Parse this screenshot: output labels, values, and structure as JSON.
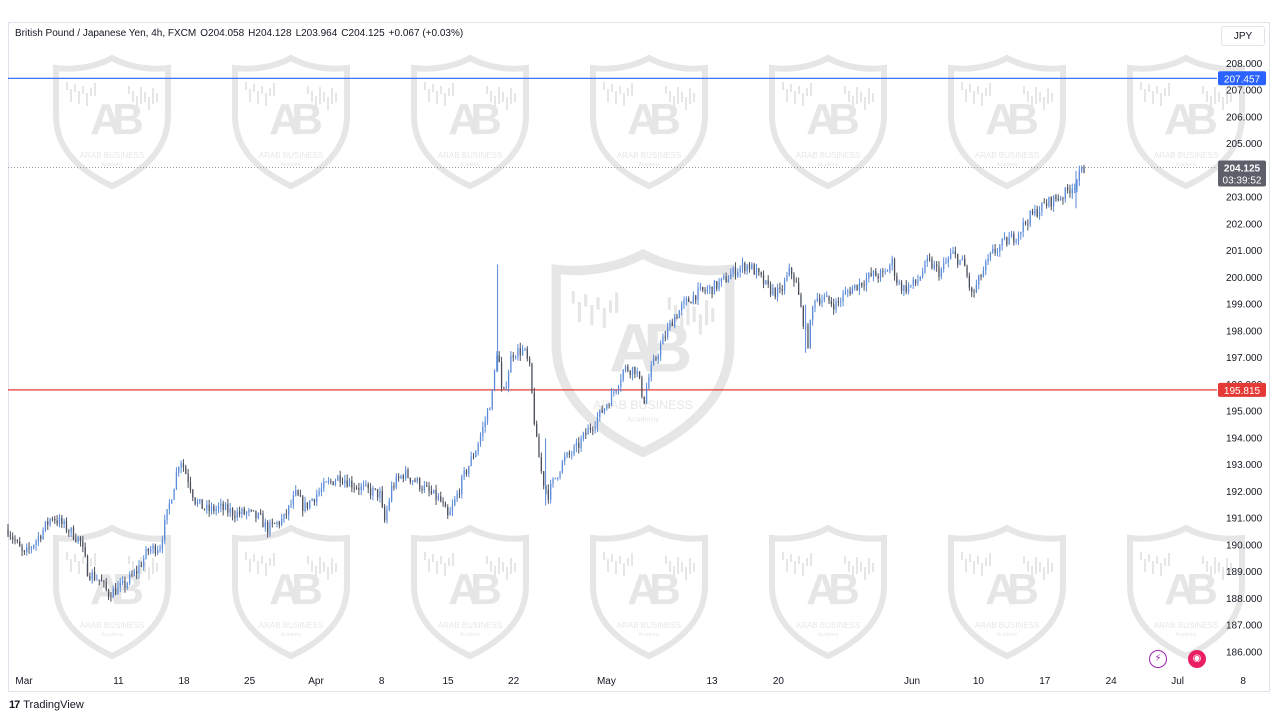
{
  "header": {
    "symbol": "British Pound / Japanese Yen, 4h, FXCM",
    "open_label": "O",
    "open": "204.058",
    "high_label": "H",
    "high": "204.128",
    "low_label": "L",
    "low": "203.964",
    "close_label": "C",
    "close": "204.125",
    "change": "+0.067 (+0.03%)"
  },
  "currency_button": "JPY",
  "brand": {
    "logo": "17",
    "name": "TradingView"
  },
  "watermark": {
    "text": "ARAB BUSINESS",
    "sub": "Academy"
  },
  "colors": {
    "bull": "#5b8bd9",
    "bear": "#4a4f5c",
    "resistance": "#2962ff",
    "support": "#e53935",
    "price_tag": "#5d606b"
  },
  "chart_data": {
    "type": "candlestick",
    "ylim": [
      185.5,
      208.6
    ],
    "yticks": [
      "186.000",
      "187.000",
      "188.000",
      "189.000",
      "190.000",
      "191.000",
      "192.000",
      "193.000",
      "194.000",
      "195.000",
      "196.000",
      "197.000",
      "198.000",
      "199.000",
      "200.000",
      "201.000",
      "202.000",
      "203.000",
      "204.000",
      "205.000",
      "206.000",
      "207.000",
      "208.000"
    ],
    "xticks": [
      {
        "label": "Mar",
        "t": 0.02
      },
      {
        "label": "11",
        "t": 0.138
      },
      {
        "label": "18",
        "t": 0.22
      },
      {
        "label": "25",
        "t": 0.302
      },
      {
        "label": "Apr",
        "t": 0.385
      },
      {
        "label": "8",
        "t": 0.467
      },
      {
        "label": "15",
        "t": 0.55
      },
      {
        "label": "22",
        "t": 0.632
      },
      {
        "label": "May",
        "t": 0.748
      },
      {
        "label": "13",
        "t": 0.88
      },
      {
        "label": "20",
        "t": 0.963
      },
      {
        "label": "Jun",
        "t": 1.13
      },
      {
        "label": "10",
        "t": 1.213
      },
      {
        "label": "17",
        "t": 1.296
      },
      {
        "label": "24",
        "t": 1.379
      },
      {
        "label": "Jul",
        "t": 1.462
      },
      {
        "label": "8",
        "t": 1.544
      }
    ],
    "hlines": [
      {
        "name": "resistance",
        "value": 207.457,
        "label": "207.457"
      },
      {
        "name": "support",
        "value": 195.815,
        "label": "195.815"
      }
    ],
    "last_price": {
      "value": 204.125,
      "label": "204.125",
      "countdown": "03:39:52"
    },
    "anchors": [
      {
        "t": 0.0,
        "y": 190.6
      },
      {
        "t": 0.02,
        "y": 189.6
      },
      {
        "t": 0.04,
        "y": 190.4
      },
      {
        "t": 0.055,
        "y": 191.1
      },
      {
        "t": 0.075,
        "y": 190.6
      },
      {
        "t": 0.09,
        "y": 190.2
      },
      {
        "t": 0.1,
        "y": 189.0
      },
      {
        "t": 0.115,
        "y": 188.7
      },
      {
        "t": 0.125,
        "y": 188.2
      },
      {
        "t": 0.145,
        "y": 188.5
      },
      {
        "t": 0.16,
        "y": 189.0
      },
      {
        "t": 0.175,
        "y": 189.8
      },
      {
        "t": 0.19,
        "y": 190.0
      },
      {
        "t": 0.2,
        "y": 191.3
      },
      {
        "t": 0.21,
        "y": 192.6
      },
      {
        "t": 0.215,
        "y": 193.3
      },
      {
        "t": 0.225,
        "y": 192.5
      },
      {
        "t": 0.235,
        "y": 191.6
      },
      {
        "t": 0.25,
        "y": 191.3
      },
      {
        "t": 0.265,
        "y": 191.4
      },
      {
        "t": 0.285,
        "y": 191.2
      },
      {
        "t": 0.3,
        "y": 191.2
      },
      {
        "t": 0.315,
        "y": 191.0
      },
      {
        "t": 0.325,
        "y": 190.6
      },
      {
        "t": 0.345,
        "y": 191.0
      },
      {
        "t": 0.36,
        "y": 191.9
      },
      {
        "t": 0.37,
        "y": 191.4
      },
      {
        "t": 0.385,
        "y": 191.9
      },
      {
        "t": 0.4,
        "y": 192.3
      },
      {
        "t": 0.415,
        "y": 192.6
      },
      {
        "t": 0.43,
        "y": 192.3
      },
      {
        "t": 0.445,
        "y": 192.1
      },
      {
        "t": 0.465,
        "y": 191.9
      },
      {
        "t": 0.47,
        "y": 190.8
      },
      {
        "t": 0.48,
        "y": 192.2
      },
      {
        "t": 0.495,
        "y": 192.7
      },
      {
        "t": 0.51,
        "y": 192.4
      },
      {
        "t": 0.525,
        "y": 192.0
      },
      {
        "t": 0.54,
        "y": 191.7
      },
      {
        "t": 0.55,
        "y": 191.0
      },
      {
        "t": 0.558,
        "y": 191.6
      },
      {
        "t": 0.57,
        "y": 192.6
      },
      {
        "t": 0.585,
        "y": 193.6
      },
      {
        "t": 0.595,
        "y": 194.5
      },
      {
        "t": 0.605,
        "y": 195.6
      },
      {
        "t": 0.612,
        "y": 197.5
      },
      {
        "t": 0.618,
        "y": 195.4
      },
      {
        "t": 0.63,
        "y": 197.2
      },
      {
        "t": 0.645,
        "y": 197.3
      },
      {
        "t": 0.652,
        "y": 196.6
      },
      {
        "t": 0.66,
        "y": 194.0
      },
      {
        "t": 0.668,
        "y": 192.5
      },
      {
        "t": 0.675,
        "y": 191.9
      },
      {
        "t": 0.685,
        "y": 192.6
      },
      {
        "t": 0.695,
        "y": 193.2
      },
      {
        "t": 0.71,
        "y": 193.6
      },
      {
        "t": 0.725,
        "y": 194.3
      },
      {
        "t": 0.74,
        "y": 194.9
      },
      {
        "t": 0.755,
        "y": 195.6
      },
      {
        "t": 0.77,
        "y": 196.6
      },
      {
        "t": 0.785,
        "y": 196.6
      },
      {
        "t": 0.795,
        "y": 195.4
      },
      {
        "t": 0.802,
        "y": 196.4
      },
      {
        "t": 0.815,
        "y": 197.4
      },
      {
        "t": 0.83,
        "y": 198.4
      },
      {
        "t": 0.845,
        "y": 199.0
      },
      {
        "t": 0.86,
        "y": 199.4
      },
      {
        "t": 0.88,
        "y": 199.6
      },
      {
        "t": 0.895,
        "y": 199.9
      },
      {
        "t": 0.91,
        "y": 200.3
      },
      {
        "t": 0.925,
        "y": 200.5
      },
      {
        "t": 0.935,
        "y": 200.2
      },
      {
        "t": 0.95,
        "y": 199.6
      },
      {
        "t": 0.965,
        "y": 199.4
      },
      {
        "t": 0.978,
        "y": 200.3
      },
      {
        "t": 0.985,
        "y": 199.8
      },
      {
        "t": 0.992,
        "y": 198.7
      },
      {
        "t": 1.0,
        "y": 197.6
      },
      {
        "t": 1.008,
        "y": 199.3
      },
      {
        "t": 1.02,
        "y": 199.2
      },
      {
        "t": 1.035,
        "y": 199.0
      },
      {
        "t": 1.05,
        "y": 199.5
      },
      {
        "t": 1.065,
        "y": 199.8
      },
      {
        "t": 1.08,
        "y": 200.1
      },
      {
        "t": 1.095,
        "y": 200.1
      },
      {
        "t": 1.105,
        "y": 200.6
      },
      {
        "t": 1.112,
        "y": 199.8
      },
      {
        "t": 1.12,
        "y": 199.6
      },
      {
        "t": 1.135,
        "y": 199.8
      },
      {
        "t": 1.15,
        "y": 200.6
      },
      {
        "t": 1.165,
        "y": 200.2
      },
      {
        "t": 1.18,
        "y": 200.9
      },
      {
        "t": 1.195,
        "y": 200.5
      },
      {
        "t": 1.205,
        "y": 199.3
      },
      {
        "t": 1.215,
        "y": 200.0
      },
      {
        "t": 1.23,
        "y": 200.9
      },
      {
        "t": 1.245,
        "y": 201.3
      },
      {
        "t": 1.26,
        "y": 201.6
      },
      {
        "t": 1.275,
        "y": 202.2
      },
      {
        "t": 1.29,
        "y": 202.6
      },
      {
        "t": 1.305,
        "y": 202.9
      },
      {
        "t": 1.32,
        "y": 203.1
      },
      {
        "t": 1.335,
        "y": 203.6
      },
      {
        "t": 1.345,
        "y": 204.1
      }
    ],
    "spikes": [
      {
        "t": 0.612,
        "high": 200.5,
        "low": 196.5
      },
      {
        "t": 0.672,
        "high": 194.0,
        "low": 191.5
      },
      {
        "t": 0.997,
        "high": 199.0,
        "low": 197.2
      },
      {
        "t": 1.335,
        "high": 204.0,
        "low": 202.6
      }
    ]
  }
}
